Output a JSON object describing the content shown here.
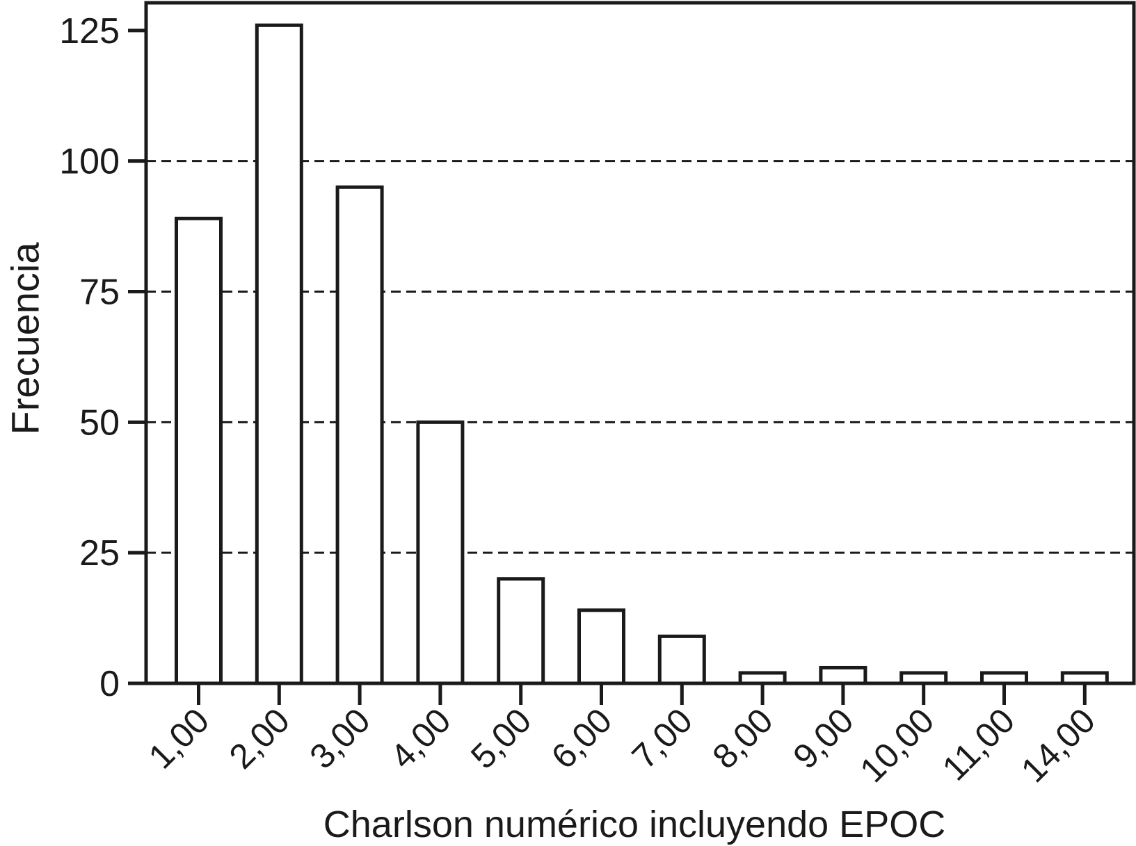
{
  "chart_data": {
    "type": "bar",
    "title": "",
    "xlabel": "Charlson numérico incluyendo EPOC",
    "ylabel": "Frecuencia",
    "categories": [
      "1,00",
      "2,00",
      "3,00",
      "4,00",
      "5,00",
      "6,00",
      "7,00",
      "8,00",
      "9,00",
      "10,00",
      "11,00",
      "14,00"
    ],
    "values": [
      89,
      126,
      95,
      50,
      20,
      14,
      9,
      2,
      3,
      2,
      2,
      2
    ],
    "yticks": [
      0,
      25,
      50,
      75,
      100,
      125
    ],
    "gridline_values": [
      25,
      50,
      75,
      100
    ],
    "ylim": [
      0,
      130.3
    ],
    "grid": "horizontal-dashed",
    "legend": "none",
    "bar_fill": "#ffffff",
    "ink_color": "#1a1a1a"
  }
}
